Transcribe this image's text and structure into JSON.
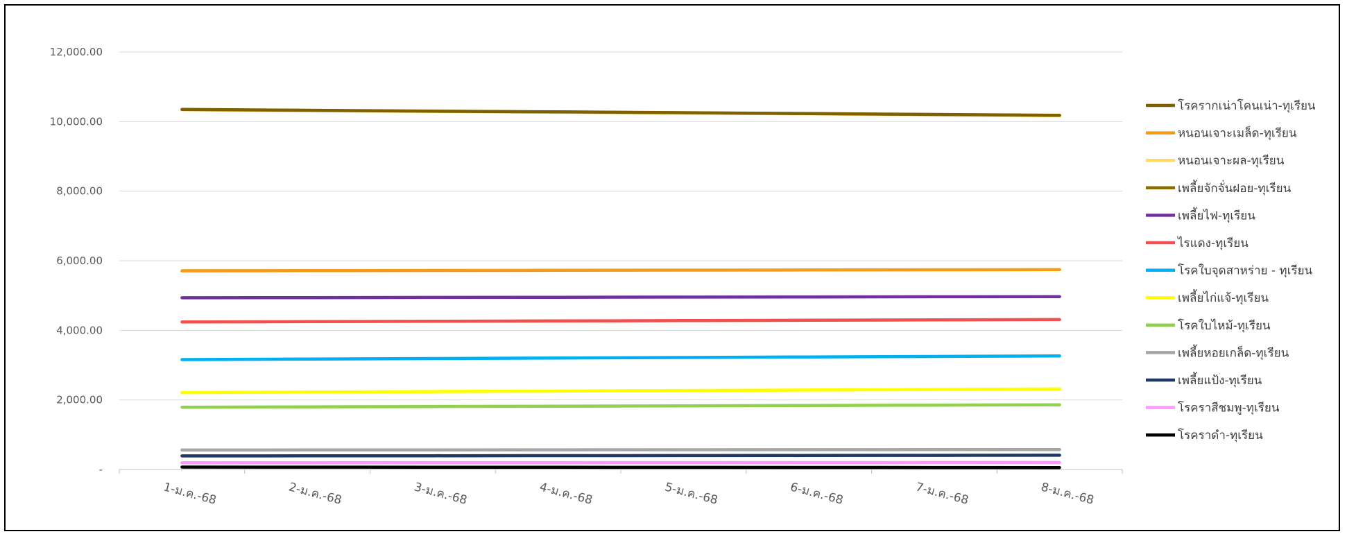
{
  "chart_data": {
    "type": "line",
    "title": "",
    "xlabel": "",
    "ylabel": "",
    "categories": [
      "1-ม.ค.-68",
      "2-ม.ค.-68",
      "3-ม.ค.-68",
      "4-ม.ค.-68",
      "5-ม.ค.-68",
      "6-ม.ค.-68",
      "7-ม.ค.-68",
      "8-ม.ค.-68"
    ],
    "y_ticks": [
      "-",
      "2,000.00",
      "4,000.00",
      "6,000.00",
      "8,000.00",
      "10,000.00",
      "12,000.00"
    ],
    "ylim": [
      0,
      12000
    ],
    "grid": true,
    "legend_position": "right",
    "series": [
      {
        "name": "โรครากเน่าโคนเน่า-ทุเรียน",
        "color": "#7F6000",
        "values": [
          10350,
          10325,
          10300,
          10280,
          10255,
          10230,
          10205,
          10180
        ]
      },
      {
        "name": "หนอนเจาะเมล็ด-ทุเรียน",
        "color": "#F59B1A",
        "values": [
          5710,
          5715,
          5720,
          5725,
          5730,
          5735,
          5740,
          5745
        ]
      },
      {
        "name": "หนอนเจาะผล-ทุเรียน",
        "color": "#FFD966",
        "values": [
          10340,
          10315,
          10290,
          10270,
          10245,
          10220,
          10195,
          10170
        ]
      },
      {
        "name": "เพลี้ยจักจั่นฝอย-ทุเรียน",
        "color": "#8C6D00",
        "values": [
          10345,
          10320,
          10295,
          10275,
          10250,
          10225,
          10200,
          10175
        ]
      },
      {
        "name": "เพลี้ยไฟ-ทุเรียน",
        "color": "#7030A0",
        "values": [
          4935,
          4940,
          4945,
          4950,
          4955,
          4960,
          4965,
          4970
        ]
      },
      {
        "name": "ไรแดง-ทุเรียน",
        "color": "#F05050",
        "values": [
          4240,
          4250,
          4260,
          4270,
          4280,
          4290,
          4300,
          4310
        ]
      },
      {
        "name": "โรคใบจุดสาหร่าย - ทุเรียน",
        "color": "#00B0F0",
        "values": [
          3160,
          3175,
          3190,
          3205,
          3220,
          3235,
          3250,
          3265
        ]
      },
      {
        "name": "เพลี้ยไก่แจ้-ทุเรียน",
        "color": "#FFFF00",
        "values": [
          2210,
          2225,
          2240,
          2255,
          2270,
          2285,
          2300,
          2315
        ]
      },
      {
        "name": "โรคใบไหม้-ทุเรียน",
        "color": "#92D050",
        "values": [
          1790,
          1800,
          1810,
          1820,
          1830,
          1840,
          1850,
          1860
        ]
      },
      {
        "name": "เพลี้ยหอยเกล็ด-ทุเรียน",
        "color": "#A6A6A6",
        "values": [
          560,
          562,
          564,
          566,
          568,
          570,
          572,
          575
        ]
      },
      {
        "name": "เพลี้ยแป้ง-ทุเรียน",
        "color": "#1F3864",
        "values": [
          390,
          392,
          395,
          398,
          400,
          403,
          406,
          410
        ]
      },
      {
        "name": "โรคราสีชมพู-ทุเรียน",
        "color": "#FF99FF",
        "values": [
          195,
          196,
          197,
          198,
          199,
          200,
          201,
          202
        ]
      },
      {
        "name": "โรคราดำ-ทุเรียน",
        "color": "#000000",
        "values": [
          70,
          68,
          66,
          64,
          62,
          60,
          58,
          55
        ]
      }
    ]
  }
}
